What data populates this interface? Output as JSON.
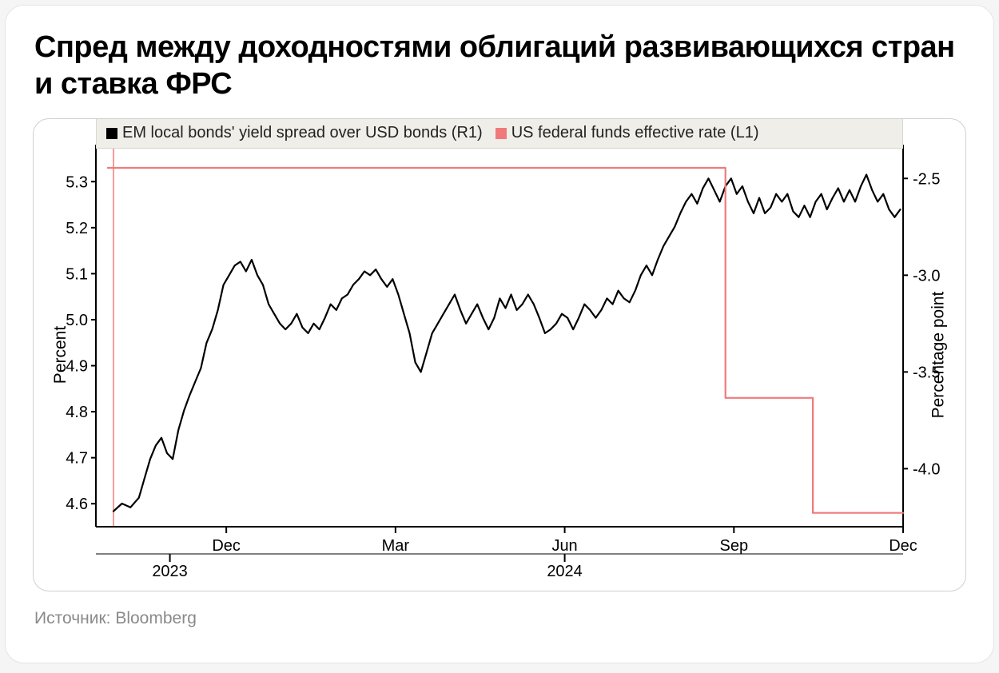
{
  "title": "Спред между доходностями облигаций развивающихся стран и ставка ФРС",
  "source": "Источник: Bloomberg",
  "chart": {
    "type": "line_dual_axis",
    "background_color": "#ffffff",
    "legend_bg": "#efeee9",
    "legend_border": "#d8d8d2",
    "axis_color": "#000000",
    "left_axis_accent": "#f07a7a",
    "tick_fontsize": 20,
    "label_fontsize": 21,
    "left_axis": {
      "label": "Percent",
      "min": 4.55,
      "max": 5.37,
      "ticks": [
        4.6,
        4.7,
        4.8,
        4.9,
        5.0,
        5.1,
        5.2,
        5.3
      ]
    },
    "right_axis": {
      "label": "Percentage point",
      "min": -4.3,
      "max": -2.35,
      "ticks": [
        -2.5,
        -3.0,
        -3.5,
        -4.0
      ]
    },
    "x_axis": {
      "min": 0,
      "max": 14,
      "month_ticks": [
        {
          "x": 2,
          "label": "Dec"
        },
        {
          "x": 5,
          "label": "Mar"
        },
        {
          "x": 8,
          "label": "Jun"
        },
        {
          "x": 11,
          "label": "Sep"
        },
        {
          "x": 14,
          "label": "Dec"
        }
      ],
      "year_ticks": [
        {
          "x": 1,
          "label": "2023"
        },
        {
          "x": 8,
          "label": "2024"
        }
      ]
    },
    "series": [
      {
        "name": "EM local bonds' yield spread over USD bonds (R1)",
        "legend_label": "EM local bonds' yield spread over USD bonds (R1)",
        "axis": "right",
        "color": "#000000",
        "line_width": 2.2,
        "points": [
          [
            0.0,
            -4.22
          ],
          [
            0.15,
            -4.18
          ],
          [
            0.3,
            -4.2
          ],
          [
            0.45,
            -4.15
          ],
          [
            0.55,
            -4.05
          ],
          [
            0.65,
            -3.95
          ],
          [
            0.75,
            -3.88
          ],
          [
            0.85,
            -3.84
          ],
          [
            0.95,
            -3.92
          ],
          [
            1.05,
            -3.95
          ],
          [
            1.15,
            -3.8
          ],
          [
            1.25,
            -3.7
          ],
          [
            1.35,
            -3.62
          ],
          [
            1.45,
            -3.55
          ],
          [
            1.55,
            -3.48
          ],
          [
            1.65,
            -3.35
          ],
          [
            1.75,
            -3.28
          ],
          [
            1.85,
            -3.18
          ],
          [
            1.95,
            -3.05
          ],
          [
            2.05,
            -3.0
          ],
          [
            2.15,
            -2.95
          ],
          [
            2.25,
            -2.93
          ],
          [
            2.35,
            -2.98
          ],
          [
            2.45,
            -2.92
          ],
          [
            2.55,
            -3.0
          ],
          [
            2.65,
            -3.05
          ],
          [
            2.75,
            -3.15
          ],
          [
            2.85,
            -3.2
          ],
          [
            2.95,
            -3.25
          ],
          [
            3.05,
            -3.28
          ],
          [
            3.15,
            -3.25
          ],
          [
            3.25,
            -3.2
          ],
          [
            3.35,
            -3.27
          ],
          [
            3.45,
            -3.3
          ],
          [
            3.55,
            -3.25
          ],
          [
            3.65,
            -3.28
          ],
          [
            3.75,
            -3.22
          ],
          [
            3.85,
            -3.15
          ],
          [
            3.95,
            -3.18
          ],
          [
            4.05,
            -3.12
          ],
          [
            4.15,
            -3.1
          ],
          [
            4.25,
            -3.05
          ],
          [
            4.35,
            -3.02
          ],
          [
            4.45,
            -2.98
          ],
          [
            4.55,
            -3.0
          ],
          [
            4.65,
            -2.97
          ],
          [
            4.75,
            -3.02
          ],
          [
            4.85,
            -3.06
          ],
          [
            4.95,
            -3.02
          ],
          [
            5.05,
            -3.1
          ],
          [
            5.15,
            -3.2
          ],
          [
            5.25,
            -3.3
          ],
          [
            5.35,
            -3.45
          ],
          [
            5.45,
            -3.5
          ],
          [
            5.55,
            -3.4
          ],
          [
            5.65,
            -3.3
          ],
          [
            5.75,
            -3.25
          ],
          [
            5.85,
            -3.2
          ],
          [
            5.95,
            -3.15
          ],
          [
            6.05,
            -3.1
          ],
          [
            6.15,
            -3.18
          ],
          [
            6.25,
            -3.25
          ],
          [
            6.35,
            -3.2
          ],
          [
            6.45,
            -3.15
          ],
          [
            6.55,
            -3.22
          ],
          [
            6.65,
            -3.28
          ],
          [
            6.75,
            -3.22
          ],
          [
            6.85,
            -3.12
          ],
          [
            6.95,
            -3.17
          ],
          [
            7.05,
            -3.1
          ],
          [
            7.15,
            -3.18
          ],
          [
            7.25,
            -3.15
          ],
          [
            7.35,
            -3.1
          ],
          [
            7.45,
            -3.15
          ],
          [
            7.55,
            -3.22
          ],
          [
            7.65,
            -3.3
          ],
          [
            7.75,
            -3.28
          ],
          [
            7.85,
            -3.25
          ],
          [
            7.95,
            -3.2
          ],
          [
            8.05,
            -3.22
          ],
          [
            8.15,
            -3.28
          ],
          [
            8.25,
            -3.22
          ],
          [
            8.35,
            -3.15
          ],
          [
            8.45,
            -3.18
          ],
          [
            8.55,
            -3.22
          ],
          [
            8.65,
            -3.18
          ],
          [
            8.75,
            -3.12
          ],
          [
            8.85,
            -3.15
          ],
          [
            8.95,
            -3.08
          ],
          [
            9.05,
            -3.12
          ],
          [
            9.15,
            -3.14
          ],
          [
            9.25,
            -3.08
          ],
          [
            9.35,
            -3.0
          ],
          [
            9.45,
            -2.95
          ],
          [
            9.55,
            -3.0
          ],
          [
            9.65,
            -2.92
          ],
          [
            9.75,
            -2.85
          ],
          [
            9.85,
            -2.8
          ],
          [
            9.95,
            -2.75
          ],
          [
            10.05,
            -2.68
          ],
          [
            10.15,
            -2.62
          ],
          [
            10.25,
            -2.58
          ],
          [
            10.35,
            -2.63
          ],
          [
            10.45,
            -2.55
          ],
          [
            10.55,
            -2.5
          ],
          [
            10.65,
            -2.56
          ],
          [
            10.75,
            -2.62
          ],
          [
            10.85,
            -2.54
          ],
          [
            10.95,
            -2.5
          ],
          [
            11.05,
            -2.58
          ],
          [
            11.15,
            -2.54
          ],
          [
            11.25,
            -2.62
          ],
          [
            11.35,
            -2.68
          ],
          [
            11.45,
            -2.6
          ],
          [
            11.55,
            -2.68
          ],
          [
            11.65,
            -2.65
          ],
          [
            11.75,
            -2.58
          ],
          [
            11.85,
            -2.62
          ],
          [
            11.95,
            -2.58
          ],
          [
            12.05,
            -2.67
          ],
          [
            12.15,
            -2.7
          ],
          [
            12.25,
            -2.64
          ],
          [
            12.35,
            -2.7
          ],
          [
            12.45,
            -2.62
          ],
          [
            12.55,
            -2.58
          ],
          [
            12.65,
            -2.66
          ],
          [
            12.75,
            -2.6
          ],
          [
            12.85,
            -2.55
          ],
          [
            12.95,
            -2.62
          ],
          [
            13.05,
            -2.56
          ],
          [
            13.15,
            -2.62
          ],
          [
            13.25,
            -2.54
          ],
          [
            13.35,
            -2.48
          ],
          [
            13.45,
            -2.56
          ],
          [
            13.55,
            -2.62
          ],
          [
            13.65,
            -2.58
          ],
          [
            13.75,
            -2.66
          ],
          [
            13.85,
            -2.7
          ],
          [
            13.95,
            -2.66
          ]
        ]
      },
      {
        "name": "US federal funds effective rate (L1)",
        "legend_label": "US federal funds effective rate (L1)",
        "axis": "left",
        "color": "#f07a7a",
        "line_width": 2.2,
        "points": [
          [
            -0.1,
            5.33
          ],
          [
            10.85,
            5.33
          ],
          [
            10.85,
            4.83
          ],
          [
            12.4,
            4.83
          ],
          [
            12.4,
            4.58
          ],
          [
            14.0,
            4.58
          ]
        ]
      }
    ]
  }
}
